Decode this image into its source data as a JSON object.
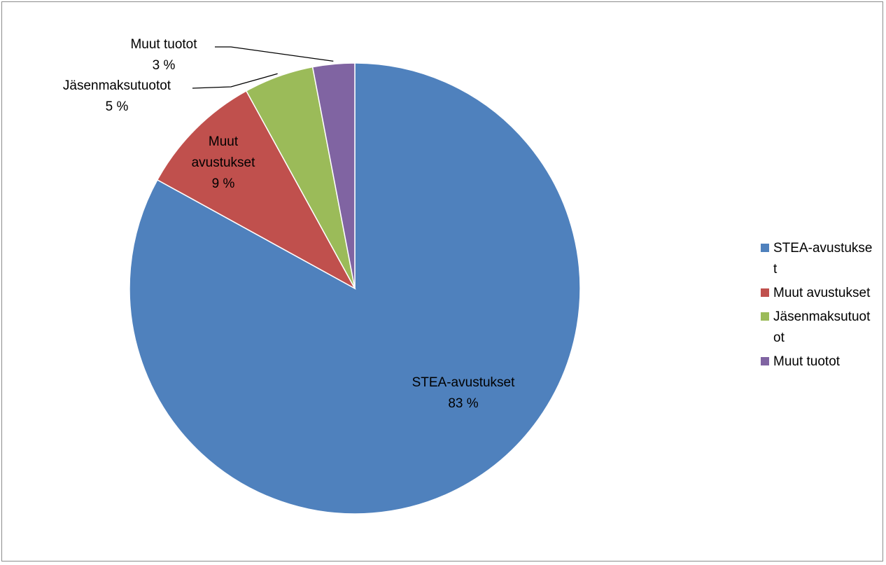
{
  "chart_data": {
    "type": "pie",
    "title": "",
    "legend_position": "right",
    "slices": [
      {
        "label": "STEA-avustukset",
        "value": 83,
        "display": "83 %",
        "color": "#4F81BD"
      },
      {
        "label": "Muut avustukset",
        "value": 9,
        "display": "9 %",
        "color": "#C0504D"
      },
      {
        "label": "Jäsenmaksutuotot",
        "value": 5,
        "display": "5 %",
        "color": "#9BBB59"
      },
      {
        "label": "Muut tuotot",
        "value": 3,
        "display": "3 %",
        "color": "#8064A2"
      }
    ]
  },
  "legend": {
    "items": [
      "STEA-avustukset",
      "Muut avustukset",
      "Jäsenmaksutuotot",
      "Muut tuotot"
    ]
  }
}
